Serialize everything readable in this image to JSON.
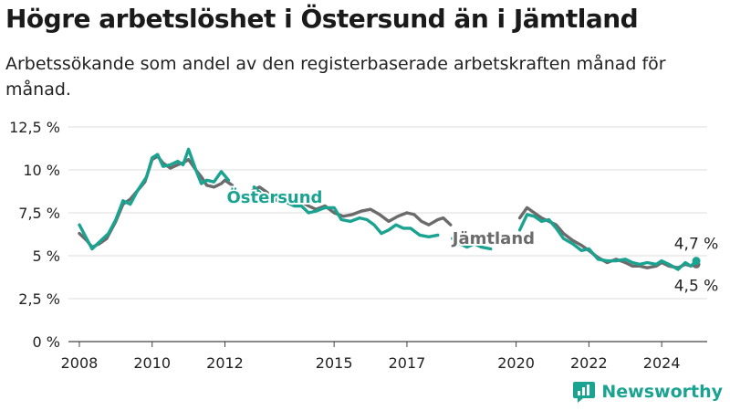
{
  "title": "Högre arbetslöshet i Östersund än i Jämtland",
  "subtitle": "Arbetssökande som andel av den registerbaserade arbetskraften månad för månad.",
  "logo_text": "Newsworthy",
  "colors": {
    "ostersund": "#1aa391",
    "jamtland": "#6b6b6b",
    "grid": "#dcdcdc",
    "axis": "#444444"
  },
  "chart_data": {
    "type": "line",
    "xlabel": "",
    "ylabel": "",
    "xlim": [
      2007.7,
      2025.25
    ],
    "ylim": [
      0,
      12.5
    ],
    "yticks": [
      0,
      2.5,
      5,
      7.5,
      10,
      12.5
    ],
    "ytick_labels": [
      "0 %",
      "2,5 %",
      "5 %",
      "7,5 %",
      "10 %",
      "12,5 %"
    ],
    "xticks": [
      2008,
      2010,
      2012,
      2015,
      2017,
      2020,
      2022,
      2024
    ],
    "xtick_labels": [
      "2008",
      "2010",
      "2012",
      "2015",
      "2017",
      "2020",
      "2022",
      "2024"
    ],
    "grid": "horizontal",
    "series": [
      {
        "name": "Jämtland",
        "color_key": "jamtland",
        "label": "Jämtland",
        "end_label": "4,5 %",
        "segments": [
          [
            [
              2008.0,
              6.3
            ],
            [
              2008.2,
              5.9
            ],
            [
              2008.35,
              5.5
            ],
            [
              2008.55,
              5.7
            ],
            [
              2008.75,
              6.0
            ],
            [
              2009.0,
              7.0
            ],
            [
              2009.2,
              8.0
            ],
            [
              2009.4,
              8.3
            ],
            [
              2009.6,
              8.8
            ],
            [
              2009.8,
              9.3
            ],
            [
              2010.0,
              10.6
            ],
            [
              2010.15,
              10.8
            ],
            [
              2010.3,
              10.4
            ],
            [
              2010.5,
              10.1
            ],
            [
              2010.7,
              10.3
            ],
            [
              2010.85,
              10.4
            ],
            [
              2011.0,
              10.6
            ],
            [
              2011.2,
              10.0
            ],
            [
              2011.35,
              9.6
            ],
            [
              2011.5,
              9.1
            ],
            [
              2011.7,
              9.0
            ],
            [
              2011.9,
              9.2
            ],
            [
              2012.0,
              9.4
            ],
            [
              2012.2,
              9.1
            ]
          ],
          [
            [
              2012.75,
              8.8
            ],
            [
              2012.95,
              9.0
            ],
            [
              2013.15,
              8.7
            ],
            [
              2013.35,
              8.3
            ],
            [
              2013.55,
              8.1
            ],
            [
              2013.8,
              8.3
            ],
            [
              2014.05,
              8.2
            ],
            [
              2014.3,
              7.9
            ],
            [
              2014.5,
              7.7
            ],
            [
              2014.75,
              7.9
            ],
            [
              2015.0,
              7.5
            ],
            [
              2015.25,
              7.3
            ],
            [
              2015.5,
              7.4
            ],
            [
              2015.75,
              7.6
            ],
            [
              2016.0,
              7.7
            ],
            [
              2016.25,
              7.4
            ],
            [
              2016.5,
              7.0
            ],
            [
              2016.75,
              7.3
            ],
            [
              2017.0,
              7.5
            ],
            [
              2017.2,
              7.4
            ],
            [
              2017.4,
              7.0
            ],
            [
              2017.6,
              6.8
            ],
            [
              2017.85,
              7.1
            ],
            [
              2018.0,
              7.2
            ],
            [
              2018.2,
              6.8
            ]
          ],
          [
            [
              2020.1,
              7.2
            ],
            [
              2020.3,
              7.8
            ],
            [
              2020.5,
              7.5
            ],
            [
              2020.7,
              7.2
            ],
            [
              2020.9,
              7.0
            ],
            [
              2021.1,
              6.8
            ],
            [
              2021.3,
              6.3
            ],
            [
              2021.55,
              5.9
            ],
            [
              2021.8,
              5.6
            ],
            [
              2022.0,
              5.3
            ],
            [
              2022.25,
              4.9
            ],
            [
              2022.5,
              4.6
            ],
            [
              2022.75,
              4.8
            ],
            [
              2023.0,
              4.6
            ],
            [
              2023.2,
              4.4
            ],
            [
              2023.4,
              4.4
            ],
            [
              2023.6,
              4.3
            ],
            [
              2023.85,
              4.4
            ],
            [
              2024.0,
              4.6
            ],
            [
              2024.2,
              4.4
            ],
            [
              2024.45,
              4.3
            ],
            [
              2024.65,
              4.5
            ],
            [
              2024.8,
              4.4
            ],
            [
              2024.95,
              4.5
            ]
          ]
        ]
      },
      {
        "name": "Östersund",
        "color_key": "ostersund",
        "label": "Östersund",
        "end_label": "4,7 %",
        "segments": [
          [
            [
              2008.0,
              6.8
            ],
            [
              2008.15,
              6.2
            ],
            [
              2008.35,
              5.4
            ],
            [
              2008.55,
              5.8
            ],
            [
              2008.8,
              6.3
            ],
            [
              2009.0,
              7.1
            ],
            [
              2009.2,
              8.2
            ],
            [
              2009.4,
              8.0
            ],
            [
              2009.6,
              8.8
            ],
            [
              2009.85,
              9.6
            ],
            [
              2010.0,
              10.7
            ],
            [
              2010.15,
              10.9
            ],
            [
              2010.3,
              10.2
            ],
            [
              2010.5,
              10.3
            ],
            [
              2010.7,
              10.5
            ],
            [
              2010.85,
              10.3
            ],
            [
              2011.0,
              11.2
            ],
            [
              2011.2,
              10.0
            ],
            [
              2011.35,
              9.2
            ],
            [
              2011.5,
              9.4
            ],
            [
              2011.7,
              9.3
            ],
            [
              2011.9,
              9.9
            ],
            [
              2012.1,
              9.4
            ]
          ],
          [
            [
              2012.8,
              9.0
            ],
            [
              2013.0,
              8.6
            ],
            [
              2013.2,
              8.4
            ],
            [
              2013.45,
              8.3
            ],
            [
              2013.7,
              8.1
            ],
            [
              2013.9,
              7.9
            ],
            [
              2014.1,
              7.9
            ],
            [
              2014.3,
              7.5
            ],
            [
              2014.5,
              7.6
            ],
            [
              2014.75,
              7.8
            ],
            [
              2015.0,
              7.8
            ],
            [
              2015.2,
              7.1
            ],
            [
              2015.45,
              7.0
            ],
            [
              2015.7,
              7.2
            ],
            [
              2015.9,
              7.1
            ],
            [
              2016.1,
              6.8
            ],
            [
              2016.3,
              6.3
            ],
            [
              2016.5,
              6.5
            ],
            [
              2016.7,
              6.8
            ],
            [
              2016.9,
              6.6
            ],
            [
              2017.1,
              6.6
            ],
            [
              2017.35,
              6.2
            ],
            [
              2017.6,
              6.1
            ],
            [
              2017.85,
              6.2
            ]
          ],
          [
            [
              2018.25,
              6.0
            ],
            [
              2018.45,
              5.7
            ],
            [
              2018.65,
              5.5
            ],
            [
              2018.85,
              5.7
            ],
            [
              2019.05,
              5.5
            ],
            [
              2019.3,
              5.4
            ]
          ],
          [
            [
              2020.1,
              6.5
            ],
            [
              2020.3,
              7.4
            ],
            [
              2020.5,
              7.3
            ],
            [
              2020.7,
              7.0
            ],
            [
              2020.9,
              7.1
            ],
            [
              2021.1,
              6.6
            ],
            [
              2021.3,
              6.0
            ],
            [
              2021.55,
              5.7
            ],
            [
              2021.8,
              5.3
            ],
            [
              2022.0,
              5.4
            ],
            [
              2022.25,
              4.8
            ],
            [
              2022.5,
              4.7
            ],
            [
              2022.75,
              4.7
            ],
            [
              2023.0,
              4.8
            ],
            [
              2023.2,
              4.6
            ],
            [
              2023.4,
              4.5
            ],
            [
              2023.6,
              4.6
            ],
            [
              2023.85,
              4.5
            ],
            [
              2024.0,
              4.7
            ],
            [
              2024.2,
              4.5
            ],
            [
              2024.45,
              4.2
            ],
            [
              2024.65,
              4.6
            ],
            [
              2024.8,
              4.4
            ],
            [
              2024.95,
              4.7
            ]
          ]
        ]
      }
    ]
  }
}
